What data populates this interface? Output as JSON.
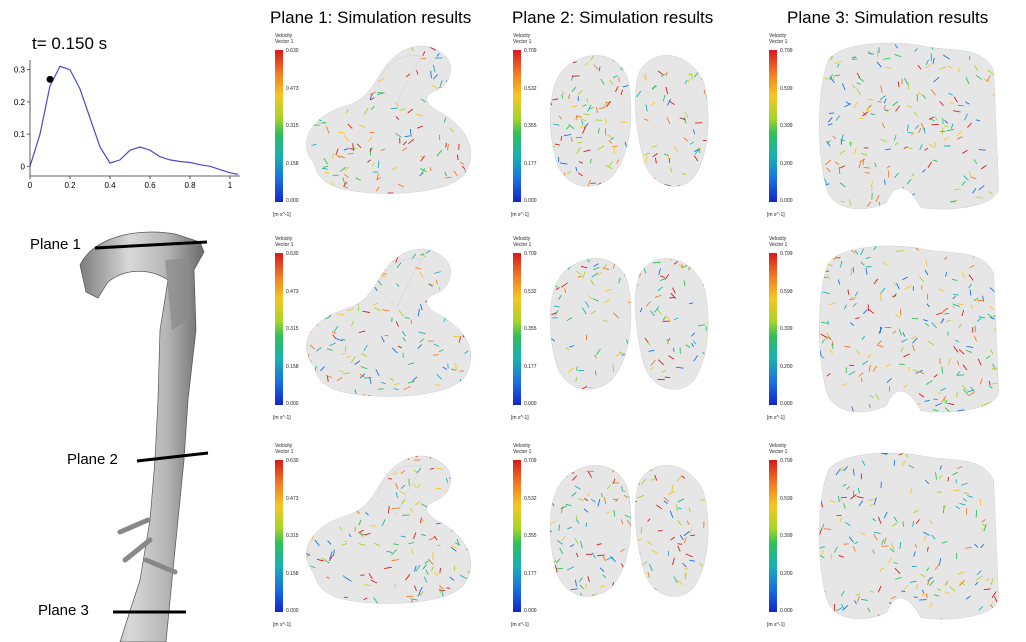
{
  "headings": {
    "col1": "Plane 1: Simulation results",
    "col2": "Plane 2: Simulation results",
    "col3": "Plane 3: Simulation results"
  },
  "time_label": "t= 0.150 s",
  "planes": {
    "plane1": "Plane 1",
    "plane2": "Plane 2",
    "plane3": "Plane 3"
  },
  "legend": {
    "title": "Velocity",
    "subtitle": "Vector 1",
    "unit": "[m s^-1]",
    "plane1_ticks": [
      "0.630",
      "0.473",
      "0.315",
      "0.158",
      "0.000"
    ],
    "plane2_ticks": [
      "0.709",
      "0.532",
      "0.355",
      "0.177",
      "0.000"
    ],
    "plane3_ticks": [
      "0.799",
      "0.599",
      "0.399",
      "0.200",
      "0.000"
    ]
  },
  "chart_data": {
    "type": "line",
    "x": [
      0,
      0.05,
      0.1,
      0.15,
      0.2,
      0.25,
      0.3,
      0.35,
      0.4,
      0.45,
      0.5,
      0.55,
      0.6,
      0.65,
      0.7,
      0.75,
      0.8,
      0.85,
      0.9,
      0.95,
      1.0,
      1.04
    ],
    "y": [
      0,
      0.1,
      0.25,
      0.31,
      0.3,
      0.24,
      0.15,
      0.06,
      0.01,
      0.02,
      0.05,
      0.06,
      0.05,
      0.03,
      0.02,
      0.015,
      0.012,
      0.005,
      0.0,
      -0.01,
      -0.02,
      -0.025
    ],
    "marker": {
      "x": 0.1,
      "y": 0.27
    },
    "xticks": [
      "0",
      "0.2",
      "0.4",
      "0.6",
      "0.8",
      "1"
    ],
    "yticks": [
      "0.3",
      "0.2",
      "0.1",
      "0"
    ],
    "xlim": [
      0,
      1.05
    ],
    "ylim": [
      -0.03,
      0.33
    ],
    "line_color": "#4a4ad0"
  }
}
